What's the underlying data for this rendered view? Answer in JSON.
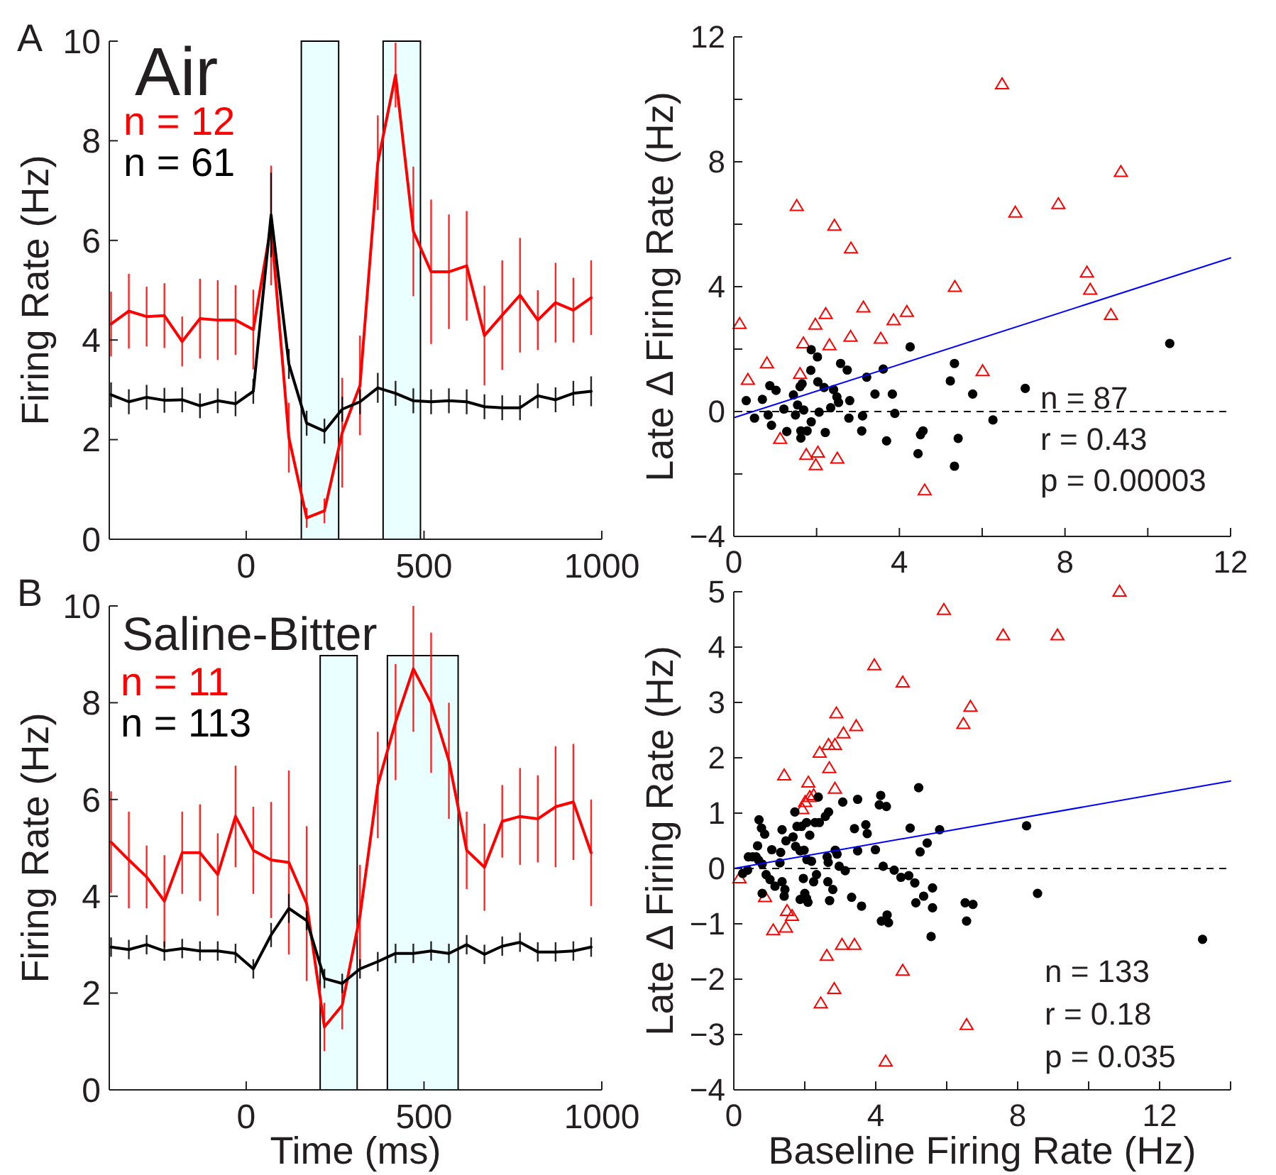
{
  "chart_data": [
    {
      "type": "line",
      "title": "Air",
      "ylabel": "Firing Rate (Hz)",
      "annotations": [
        "A"
      ],
      "x": [
        -380,
        -330,
        -280,
        -230,
        -180,
        -130,
        -80,
        -30,
        20,
        70,
        120,
        170,
        220,
        270,
        320,
        370,
        420,
        470,
        520,
        570,
        620,
        670,
        720,
        770,
        820,
        870,
        920,
        970
      ],
      "xlim": [
        -385,
        1000
      ],
      "xticks": [
        0,
        500,
        1000
      ],
      "ylim": [
        0,
        10
      ],
      "yticks": [
        0,
        2,
        4,
        6,
        8,
        10
      ],
      "legend": "top left",
      "bands": [
        {
          "axis": "x",
          "from": 155,
          "to": 260,
          "color": "#eaffff"
        },
        {
          "axis": "x",
          "from": 385,
          "to": 490,
          "color": "#eaffff"
        }
      ],
      "series": [
        {
          "name": "n = 12",
          "color": "#ff0000",
          "values": [
            4.32,
            4.58,
            4.47,
            4.49,
            3.97,
            4.43,
            4.4,
            4.4,
            4.21,
            6.3,
            2.04,
            0.43,
            0.57,
            2.14,
            3.09,
            7.56,
            9.32,
            6.18,
            5.37,
            5.37,
            5.49,
            4.09,
            4.5,
            4.9,
            4.4,
            4.75,
            4.6,
            4.85
          ],
          "errors": [
            0.65,
            0.75,
            0.6,
            0.65,
            0.5,
            0.8,
            0.8,
            0.7,
            0.8,
            1.2,
            0.7,
            0.2,
            0.25,
            1.1,
            1.0,
            0.95,
            0.65,
            1.3,
            1.45,
            1.15,
            1.1,
            1.0,
            1.1,
            1.15,
            0.6,
            0.8,
            0.65,
            0.75
          ]
        },
        {
          "name": "n = 61",
          "color": "#000000",
          "values": [
            2.9,
            2.76,
            2.85,
            2.79,
            2.8,
            2.68,
            2.78,
            2.72,
            2.97,
            6.51,
            3.52,
            2.33,
            2.17,
            2.61,
            2.76,
            3.04,
            2.93,
            2.78,
            2.76,
            2.78,
            2.76,
            2.66,
            2.64,
            2.64,
            2.88,
            2.8,
            2.93,
            2.97
          ],
          "errors": [
            0.25,
            0.25,
            0.25,
            0.25,
            0.25,
            0.25,
            0.25,
            0.25,
            0.25,
            0.85,
            0.3,
            0.25,
            0.25,
            0.25,
            0.25,
            0.3,
            0.25,
            0.25,
            0.25,
            0.25,
            0.25,
            0.25,
            0.25,
            0.25,
            0.25,
            0.25,
            0.25,
            0.3
          ]
        }
      ]
    },
    {
      "type": "scatter",
      "ylabel": "Late Δ Firing Rate (Hz)",
      "annotations": [
        "n = 87",
        "r = 0.43",
        "p = 0.00003"
      ],
      "xlim": [
        0,
        12
      ],
      "xticks": [
        0,
        {
          "value": 2,
          "label": null
        },
        4,
        {
          "value": 6,
          "label": null
        },
        8,
        {
          "value": 10,
          "label": null
        },
        12
      ],
      "ylim": [
        -4,
        12
      ],
      "yticks": [
        -4,
        {
          "value": -2,
          "label": null
        },
        0,
        {
          "value": 2,
          "label": null
        },
        4,
        {
          "value": 6,
          "label": null
        },
        8,
        {
          "value": 10,
          "label": null
        },
        12
      ],
      "ref_lines": [
        {
          "axis": "y",
          "value": 0,
          "color": "#000000",
          "line_style": "dashed"
        }
      ],
      "series": [
        {
          "type": "scatter",
          "marker": "triangle",
          "color": "#ff0000",
          "x": [
            0.14,
            0.34,
            0.8,
            1.12,
            1.52,
            1.6,
            1.68,
            1.75,
            1.97,
            2.03,
            1.98,
            2.22,
            2.31,
            2.43,
            2.5,
            2.83,
            2.82,
            3.13,
            3.55,
            3.86,
            4.18,
            4.61,
            5.34,
            6.01,
            6.48,
            6.8,
            7.84,
            8.53,
            8.61,
            9.11,
            9.35
          ],
          "values": [
            2.8,
            1.01,
            1.54,
            -0.88,
            6.58,
            1.2,
            2.18,
            -1.39,
            2.78,
            -1.32,
            -1.72,
            3.12,
            2.12,
            5.95,
            -1.51,
            5.22,
            2.39,
            3.33,
            2.33,
            2.92,
            3.19,
            -2.53,
            3.99,
            1.29,
            10.48,
            6.37,
            6.64,
            4.45,
            3.9,
            3.09,
            7.67
          ]
        },
        {
          "type": "scatter",
          "marker": "circle",
          "color": "#000000",
          "x": [
            0.3,
            0.5,
            0.69,
            0.87,
            1.02,
            0.83,
            0.91,
            1.21,
            1.28,
            1.44,
            1.49,
            1.54,
            1.6,
            1.65,
            1.69,
            1.62,
            1.62,
            1.77,
            1.87,
            1.86,
            1.87,
            2.02,
            2.03,
            2.06,
            2.21,
            2.18,
            2.34,
            2.41,
            2.49,
            2.53,
            2.58,
            2.74,
            2.8,
            2.78,
            3.09,
            3.11,
            3.21,
            3.41,
            3.61,
            3.83,
            3.89,
            3.69,
            4.26,
            4.45,
            4.51,
            4.57,
            5.23,
            5.33,
            5.42,
            5.33,
            5.77,
            6.26,
            7.04,
            10.53
          ],
          "values": [
            0.35,
            -0.21,
            0.39,
            0.83,
            0.68,
            -0.11,
            -0.44,
            0.08,
            -0.64,
            0.53,
            -0.11,
            0.21,
            0.8,
            0.89,
            0.05,
            -0.62,
            -0.85,
            -0.62,
            -0.33,
            1.32,
            1.98,
            1.75,
            0.95,
            -0.02,
            -0.67,
            0.77,
            0.12,
            0.7,
            0.47,
            0.29,
            1.54,
            1.33,
            0.35,
            -0.21,
            -0.62,
            -0.14,
            1.1,
            0.56,
            1.36,
            0.56,
            -0.06,
            -0.94,
            2.07,
            -1.35,
            -0.74,
            -0.62,
            0.98,
            1.54,
            -0.86,
            -1.75,
            0.56,
            -0.27,
            0.74,
            2.18
          ]
        },
        {
          "type": "line",
          "color": "#0000ff",
          "x": [
            0,
            12
          ],
          "values": [
            -0.2,
            4.92
          ]
        }
      ]
    },
    {
      "type": "line",
      "title": "Saline-Bitter",
      "xlabel": "Time (ms)",
      "ylabel": "Firing Rate (Hz)",
      "annotations": [
        "B"
      ],
      "x": [
        -380,
        -330,
        -280,
        -230,
        -180,
        -130,
        -80,
        -30,
        20,
        70,
        120,
        170,
        220,
        270,
        320,
        370,
        420,
        470,
        520,
        570,
        620,
        670,
        720,
        770,
        820,
        870,
        920,
        970
      ],
      "xlim": [
        -385,
        1000
      ],
      "xticks": [
        0,
        500,
        1000
      ],
      "ylim": [
        0,
        10
      ],
      "yticks": [
        0,
        2,
        4,
        6,
        8,
        10
      ],
      "legend": "top left",
      "bands": [
        {
          "axis": "x",
          "from": 208,
          "to": 312,
          "color": "#eaffff"
        },
        {
          "axis": "x",
          "from": 397,
          "to": 596,
          "color": "#eaffff"
        }
      ],
      "series": [
        {
          "name": "n = 11",
          "color": "#ff0000",
          "values": [
            5.12,
            4.75,
            4.4,
            3.9,
            4.9,
            4.9,
            4.45,
            5.65,
            4.95,
            4.75,
            4.7,
            3.85,
            1.3,
            1.75,
            3.6,
            6.3,
            7.6,
            8.7,
            8.0,
            6.8,
            4.95,
            4.6,
            5.55,
            5.65,
            5.6,
            5.85,
            5.95,
            4.9
          ],
          "errors": [
            1.05,
            1.0,
            0.65,
            0.95,
            0.85,
            1.0,
            0.85,
            1.05,
            0.9,
            1.2,
            1.9,
            1.6,
            0.5,
            0.5,
            1.05,
            1.1,
            1.2,
            1.3,
            1.45,
            1.2,
            0.8,
            0.9,
            0.75,
            1.0,
            0.9,
            1.25,
            1.2,
            1.1
          ]
        },
        {
          "name": "n = 113",
          "color": "#000000",
          "values": [
            2.95,
            2.9,
            3.0,
            2.87,
            2.92,
            2.87,
            2.87,
            2.82,
            2.5,
            3.2,
            3.75,
            3.5,
            2.3,
            2.2,
            2.5,
            2.65,
            2.82,
            2.82,
            2.87,
            2.82,
            3.0,
            2.8,
            2.97,
            3.05,
            2.85,
            2.85,
            2.87,
            2.95
          ],
          "errors": [
            0.2,
            0.2,
            0.2,
            0.2,
            0.2,
            0.2,
            0.2,
            0.2,
            0.2,
            0.25,
            0.3,
            0.2,
            0.2,
            0.2,
            0.2,
            0.2,
            0.2,
            0.2,
            0.2,
            0.2,
            0.2,
            0.2,
            0.2,
            0.2,
            0.2,
            0.2,
            0.2,
            0.2
          ]
        }
      ]
    },
    {
      "type": "scatter",
      "xlabel": "Baseline Firing Rate (Hz)",
      "ylabel": "Late Δ Firing Rate (Hz)",
      "annotations": [
        "n = 133",
        "r = 0.18",
        "p = 0.035"
      ],
      "xlim": [
        0,
        14
      ],
      "xticks": [
        0,
        {
          "value": 2,
          "label": null
        },
        4,
        {
          "value": 6,
          "label": null
        },
        8,
        {
          "value": 10,
          "label": null
        },
        12,
        {
          "value": 14,
          "label": null
        }
      ],
      "ylim": [
        -4,
        5
      ],
      "yticks": [
        -4,
        -3,
        -2,
        -1,
        0,
        1,
        2,
        3,
        4,
        5
      ],
      "ref_lines": [
        {
          "axis": "y",
          "value": 0,
          "color": "#000000",
          "line_style": "dashed"
        }
      ],
      "series": [
        {
          "type": "scatter",
          "marker": "triangle",
          "color": "#ff0000",
          "x": [
            0.16,
            0.88,
            1.11,
            1.42,
            1.47,
            1.5,
            1.64,
            1.93,
            2.01,
            2.1,
            2.14,
            2.25,
            2.42,
            2.45,
            2.62,
            2.69,
            2.67,
            2.85,
            2.85,
            2.83,
            2.89,
            3.05,
            3.09,
            3.4,
            3.45,
            3.96,
            4.28,
            4.76,
            4.76,
            5.92,
            6.47,
            6.56,
            6.67,
            7.59,
            9.12,
            10.87
          ],
          "values": [
            -0.18,
            -0.52,
            -1.12,
            1.68,
            -1.07,
            -0.77,
            -0.86,
            1.07,
            1.2,
            1.55,
            1.29,
            1.32,
            2.09,
            -2.44,
            -1.58,
            1.81,
            2.23,
            2.23,
            1.44,
            -2.18,
            2.8,
            -1.38,
            2.44,
            -1.38,
            2.57,
            3.67,
            -3.49,
            3.36,
            -1.85,
            4.67,
            2.61,
            -2.83,
            2.92,
            4.21,
            4.21,
            5.0
          ]
        },
        {
          "type": "scatter",
          "marker": "circle",
          "color": "#000000",
          "x": [
            0.25,
            0.39,
            0.41,
            0.53,
            0.63,
            0.71,
            0.78,
            0.87,
            0.67,
            0.8,
            0.7,
            0.8,
            0.91,
            1.02,
            1.07,
            1.16,
            1.3,
            1.32,
            1.36,
            1.36,
            1.42,
            1.44,
            1.47,
            1.67,
            1.72,
            1.74,
            1.78,
            1.87,
            1.87,
            1.91,
            1.96,
            1.98,
            2.05,
            2.0,
            2.05,
            2.09,
            2.06,
            2.14,
            2.19,
            2.25,
            2.29,
            2.33,
            2.38,
            2.41,
            2.58,
            2.63,
            2.67,
            2.65,
            2.7,
            2.66,
            2.79,
            2.86,
            2.91,
            2.97,
            3.07,
            3.14,
            3.32,
            3.4,
            3.49,
            3.49,
            3.6,
            3.72,
            3.76,
            3.99,
            4.14,
            4.1,
            4.3,
            4.21,
            4.16,
            4.32,
            4.36,
            4.52,
            4.71,
            4.93,
            4.97,
            5.1,
            5.13,
            5.21,
            5.25,
            5.35,
            5.45,
            5.6,
            5.6,
            5.56,
            5.8,
            6.52,
            6.74,
            6.56,
            8.25,
            8.56,
            13.21
          ],
          "values": [
            -0.09,
            -0.03,
            0.21,
            0.21,
            0.21,
            0.88,
            0.73,
            0.62,
            0.41,
            0.08,
            0.15,
            -0.45,
            -0.11,
            -0.2,
            0.34,
            -0.32,
            0.1,
            0.29,
            0.7,
            -0.24,
            -0.5,
            -0.38,
            0.5,
            0.57,
            1.02,
            0.4,
            0.76,
            0.32,
            -0.56,
            0.76,
            -0.18,
            0.33,
            0.83,
            -0.45,
            -0.54,
            -0.61,
            0.16,
            0.6,
            0.13,
            -0.24,
            0.83,
            -0.11,
            1.29,
            0.83,
            0.94,
            0.21,
            1.02,
            -0.24,
            -0.58,
            0.11,
            -0.38,
            0.33,
            0.26,
            0.04,
            1.2,
            -0.04,
            -0.52,
            0.72,
            1.25,
            0.32,
            -0.68,
            0.79,
            0.63,
            0.34,
            1.32,
            1.15,
            1.12,
            0.04,
            -0.95,
            -0.84,
            -0.98,
            -0.03,
            -0.16,
            -0.13,
            0.73,
            -0.26,
            -0.62,
            1.46,
            0.3,
            -0.5,
            0.46,
            -0.35,
            -0.71,
            -1.23,
            0.7,
            -0.62,
            -0.65,
            -0.95,
            0.77,
            -0.45,
            -1.28
          ]
        },
        {
          "type": "line",
          "color": "#0000ff",
          "x": [
            0,
            14
          ],
          "values": [
            0,
            1.58
          ]
        }
      ]
    }
  ]
}
